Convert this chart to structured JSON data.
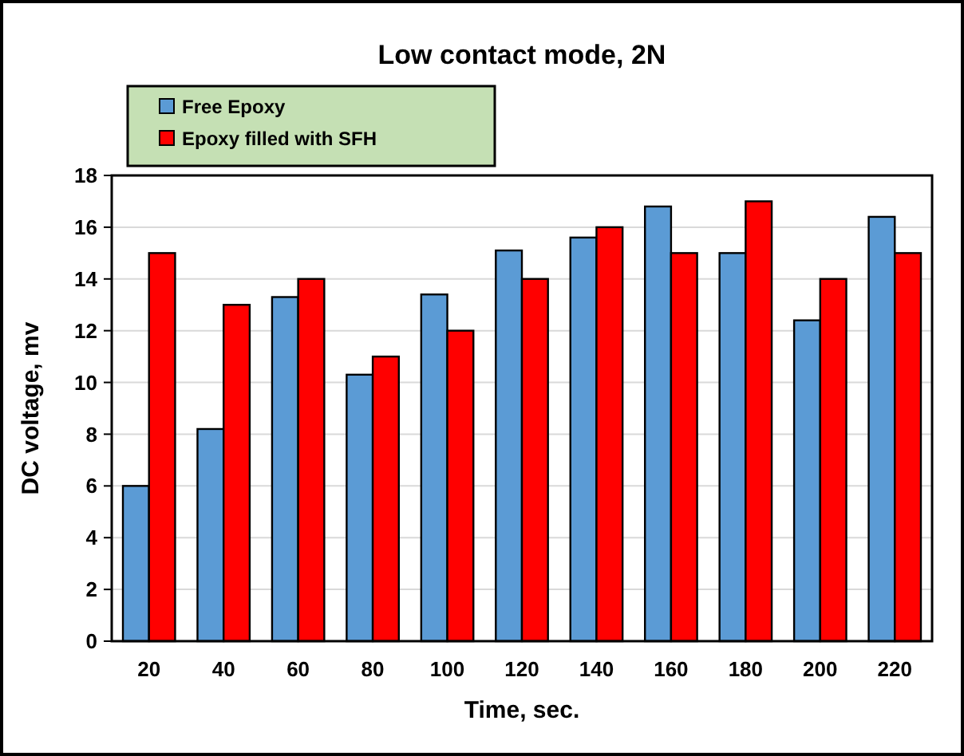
{
  "chart_data": {
    "type": "bar",
    "title": "Low contact mode, 2N",
    "xlabel": "Time, sec.",
    "ylabel": "DC voltage, mv",
    "categories": [
      "20",
      "40",
      "60",
      "80",
      "100",
      "120",
      "140",
      "160",
      "180",
      "200",
      "220"
    ],
    "series": [
      {
        "name": "Free Epoxy",
        "color": "#5b9bd5",
        "values": [
          6,
          8.2,
          13.3,
          10.3,
          13.4,
          15.1,
          15.6,
          16.8,
          15,
          12.4,
          16.4
        ]
      },
      {
        "name": "Epoxy filled with SFH",
        "color": "#ff0000",
        "values": [
          15,
          13,
          14,
          11,
          12,
          14,
          16,
          15,
          17,
          14,
          15
        ]
      }
    ],
    "ylim": [
      0,
      18
    ],
    "yticks": [
      0,
      2,
      4,
      6,
      8,
      10,
      12,
      14,
      16,
      18
    ],
    "grid": "y",
    "legend": "top left"
  }
}
